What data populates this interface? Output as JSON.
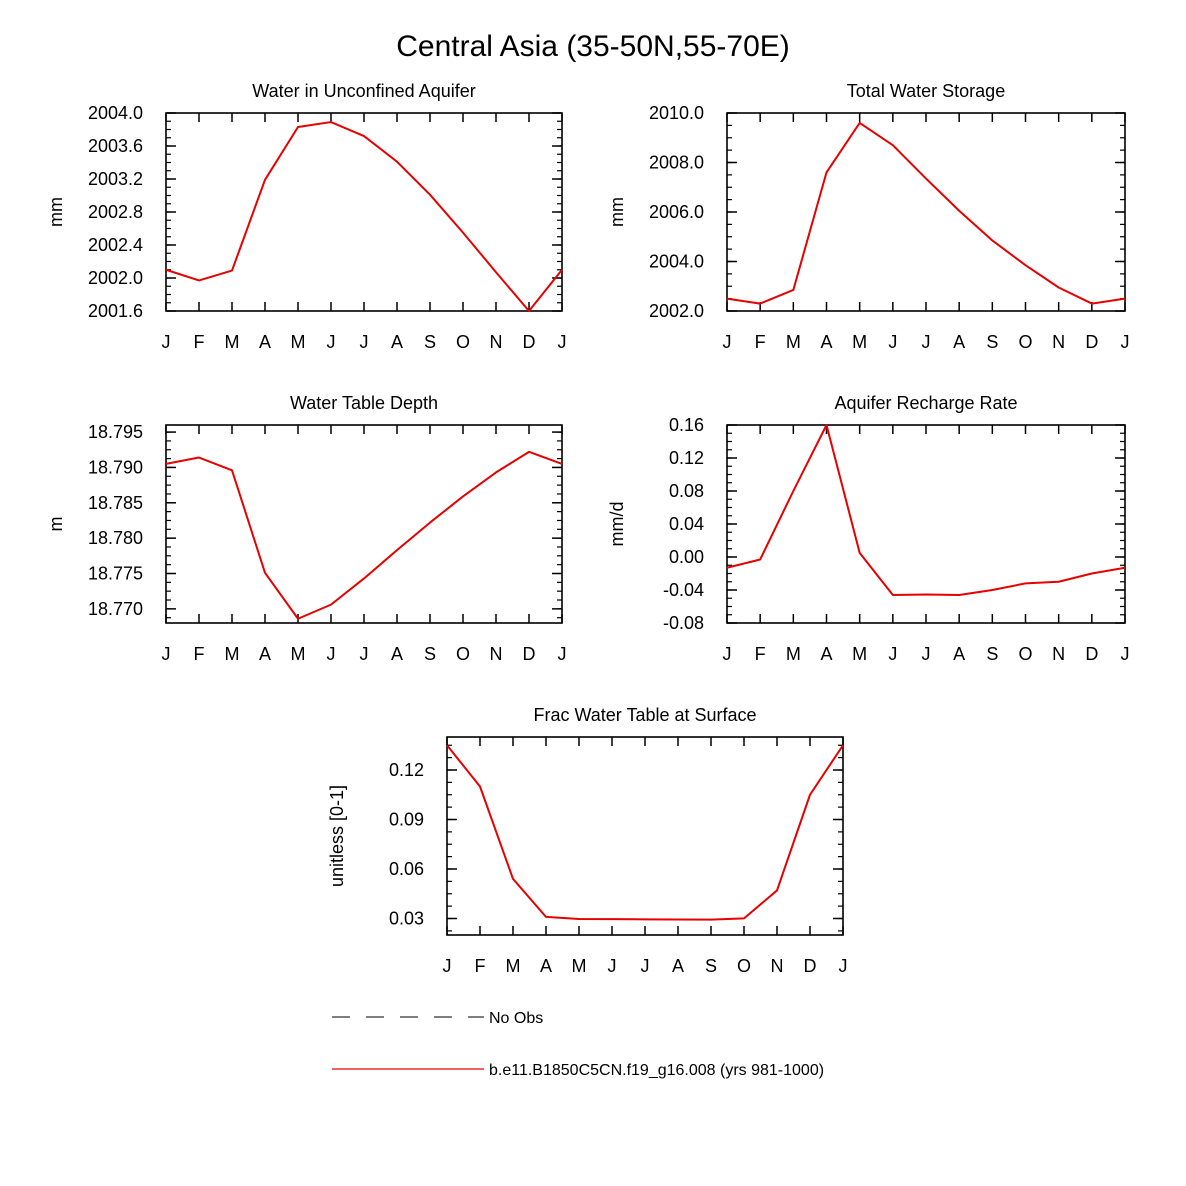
{
  "page_title": "Central Asia (35-50N,55-70E)",
  "months": [
    "J",
    "F",
    "M",
    "A",
    "M",
    "J",
    "J",
    "A",
    "S",
    "O",
    "N",
    "D",
    "J"
  ],
  "chart_data": [
    {
      "type": "line",
      "title": "Water in Unconfined Aquifer",
      "ylabel": "mm",
      "ylim": [
        2001.6,
        2004.0
      ],
      "yticks": [
        2001.6,
        2002.0,
        2002.4,
        2002.8,
        2003.2,
        2003.6,
        2004.0
      ],
      "ytick_decimals": 1,
      "series": [
        {
          "values": [
            2002.1,
            2001.97,
            2002.09,
            2003.19,
            2003.83,
            2003.89,
            2003.72,
            2003.41,
            2003.01,
            2002.55,
            2002.07,
            2001.6,
            2002.1
          ]
        }
      ]
    },
    {
      "type": "line",
      "title": "Total Water Storage",
      "ylabel": "mm",
      "ylim": [
        2002.0,
        2010.0
      ],
      "yticks": [
        2002.0,
        2004.0,
        2006.0,
        2008.0,
        2010.0
      ],
      "ytick_decimals": 1,
      "series": [
        {
          "values": [
            2002.5,
            2002.3,
            2002.85,
            2007.6,
            2009.6,
            2008.7,
            2007.35,
            2006.05,
            2004.85,
            2003.85,
            2002.95,
            2002.3,
            2002.5
          ]
        }
      ]
    },
    {
      "type": "line",
      "title": "Water Table Depth",
      "ylabel": "m",
      "ylim": [
        18.768,
        18.796
      ],
      "yticks": [
        18.77,
        18.775,
        18.78,
        18.785,
        18.79,
        18.795
      ],
      "ytick_decimals": 3,
      "series": [
        {
          "values": [
            18.7905,
            18.7914,
            18.7896,
            18.7751,
            18.7686,
            18.7706,
            18.7743,
            18.7783,
            18.7822,
            18.7859,
            18.7893,
            18.7922,
            18.7905
          ]
        }
      ]
    },
    {
      "type": "line",
      "title": "Aquifer Recharge Rate",
      "ylabel": "mm/d",
      "ylim": [
        -0.08,
        0.16
      ],
      "yticks": [
        -0.08,
        -0.04,
        0.0,
        0.04,
        0.08,
        0.12,
        0.16
      ],
      "ytick_decimals": 2,
      "series": [
        {
          "values": [
            -0.013,
            -0.003,
            0.08,
            0.16,
            0.005,
            -0.046,
            -0.0455,
            -0.046,
            -0.04,
            -0.032,
            -0.03,
            -0.02,
            -0.013
          ]
        }
      ]
    },
    {
      "type": "line",
      "title": "Frac Water Table at Surface",
      "ylabel": "unitless [0-1]",
      "ylim": [
        0.02,
        0.14
      ],
      "yticks": [
        0.03,
        0.06,
        0.09,
        0.12
      ],
      "ytick_decimals": 2,
      "series": [
        {
          "values": [
            0.135,
            0.11,
            0.054,
            0.031,
            0.0297,
            0.0296,
            0.0295,
            0.0294,
            0.0293,
            0.0301,
            0.047,
            0.105,
            0.135
          ]
        }
      ]
    }
  ],
  "legend": [
    {
      "label": "No Obs",
      "color": "#333333",
      "dashed": true
    },
    {
      "label": "b.e11.B1850C5CN.f19_g16.008 (yrs 981-1000)",
      "color": "#e60000",
      "dashed": false
    }
  ],
  "colors": {
    "series": "#e60000",
    "axis": "#000000"
  }
}
